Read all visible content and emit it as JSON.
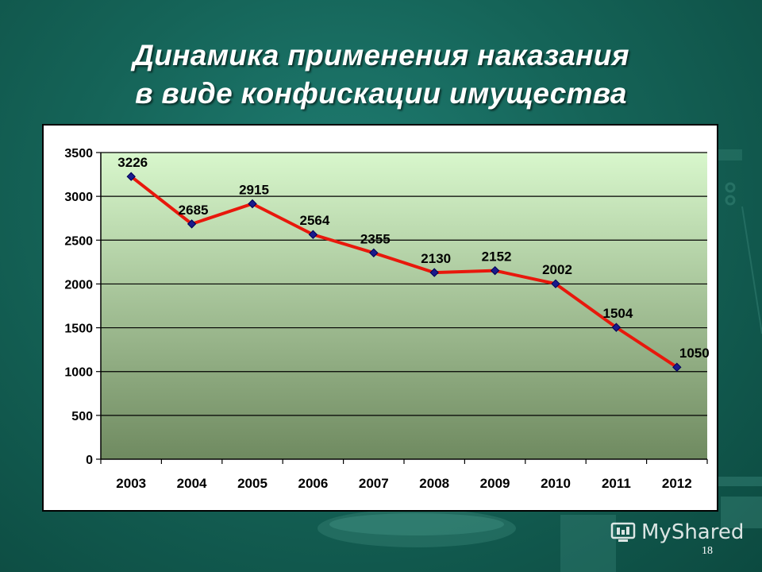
{
  "slide": {
    "title_line1": "Динамика применения наказания",
    "title_line2": "в виде конфискации имущества",
    "page_number": "18"
  },
  "watermark": {
    "icon": "mysahred-logo-icon",
    "text": "MyShared"
  },
  "colors": {
    "line": "#e8180c",
    "marker": "#1a1a8c",
    "plot_top": "#d8f7cc",
    "plot_bottom": "#6f8a60",
    "background": "#156458"
  },
  "chart_data": {
    "type": "line",
    "title": "",
    "xlabel": "",
    "ylabel": "",
    "categories": [
      "2003",
      "2004",
      "2005",
      "2006",
      "2007",
      "2008",
      "2009",
      "2010",
      "2011",
      "2012"
    ],
    "series": [
      {
        "values": [
          3226,
          2685,
          2915,
          2564,
          2355,
          2130,
          2152,
          2002,
          1504,
          1050
        ]
      }
    ],
    "ylim": [
      0,
      3500
    ],
    "yticks": [
      0,
      500,
      1000,
      1500,
      2000,
      2500,
      3000,
      3500
    ],
    "grid": true,
    "legend": "none",
    "data_labels": [
      "3226",
      "2685",
      "2915",
      "2564",
      "2355",
      "2130",
      "2152",
      "2002",
      "1504",
      "1050"
    ]
  }
}
